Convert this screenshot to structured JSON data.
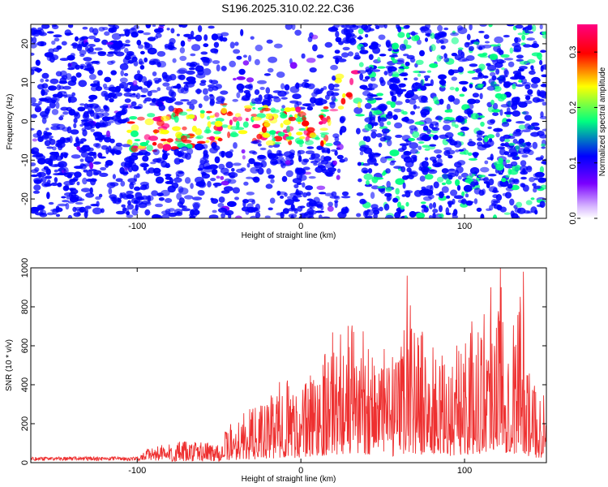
{
  "title": "S196.2025.310.02.22.C36",
  "chart_data": [
    {
      "type": "heatmap",
      "xlabel": "Height of straight line (km)",
      "ylabel": "Frequency (Hz)",
      "xlim": [
        -165,
        150
      ],
      "ylim": [
        -25,
        25
      ],
      "xticks": [
        -100,
        0,
        100
      ],
      "xtick_labels": [
        "-100",
        "0",
        "100"
      ],
      "yticks": [
        -20,
        -10,
        0,
        10,
        20
      ],
      "ytick_labels": [
        "-20",
        "-10",
        "0",
        "10",
        "20"
      ],
      "colorbar": {
        "label": "Normalized spectral amplitude",
        "range": [
          0.0,
          0.35
        ],
        "ticks": [
          0.0,
          0.1,
          0.2,
          0.3
        ],
        "tick_labels": [
          "0.0",
          "0.1",
          "0.2",
          "0.3"
        ],
        "colors": [
          "#ffffff",
          "#7a00ff",
          "#0000ff",
          "#00ff80",
          "#ffff00",
          "#ff0000",
          "#ff0080"
        ]
      },
      "features": {
        "band_center_hz": [
          [
            -95,
            -3
          ],
          [
            -60,
            -1
          ],
          [
            -30,
            0
          ],
          [
            0,
            -2
          ],
          [
            20,
            -1
          ],
          [
            25,
            10
          ],
          [
            33,
            9
          ]
        ],
        "gap_km": [
          28,
          35
        ],
        "gap_freq_hz": [
          -25,
          5
        ]
      }
    },
    {
      "type": "line",
      "xlabel": "Height of straight line (km)",
      "ylabel": "SNR (10 * v/v)",
      "xlim": [
        -165,
        150
      ],
      "ylim": [
        0,
        1000
      ],
      "xticks": [
        -100,
        0,
        100
      ],
      "xtick_labels": [
        "-100",
        "0",
        "100"
      ],
      "yticks": [
        0,
        200,
        400,
        600,
        800,
        1000
      ],
      "ytick_labels": [
        "0",
        "200",
        "400",
        "600",
        "800",
        "1000"
      ],
      "color": "#ee3030",
      "envelope": {
        "x": [
          -165,
          -100,
          -90,
          -50,
          -40,
          -30,
          -20,
          -10,
          0,
          10,
          20,
          30,
          40,
          50,
          60,
          65,
          70,
          80,
          90,
          100,
          110,
          115,
          120,
          130,
          135,
          140,
          150
        ],
        "y": [
          30,
          30,
          100,
          120,
          240,
          280,
          320,
          460,
          380,
          550,
          690,
          740,
          700,
          600,
          510,
          960,
          750,
          600,
          520,
          700,
          770,
          900,
          1000,
          750,
          980,
          420,
          400
        ]
      },
      "peaks": [
        {
          "x": 65,
          "y": 960
        },
        {
          "x": 116,
          "y": 900
        },
        {
          "x": 122,
          "y": 1000
        },
        {
          "x": 136,
          "y": 980
        }
      ]
    }
  ]
}
